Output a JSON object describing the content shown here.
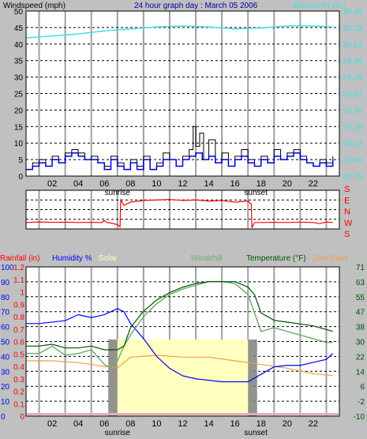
{
  "colors": {
    "background": "#c0c0c0",
    "plot_background": "#ffffff",
    "grid": "#000000",
    "vgrid": "#a0a0a0",
    "windspeed": "#000000",
    "windspeed_avg": "#0000dd",
    "barometer": "#40e0e0",
    "direction": "#ff0000",
    "rainfall": "#ff0000",
    "humidity": "#0000ff",
    "solar": "#ffffc0",
    "windchill": "#70b070",
    "temperature": "#005000",
    "dewpoint": "#f0a040",
    "daylight": "#808080"
  },
  "chart_data": [
    {
      "type": "line",
      "title": "24 hour graph day : March 05 2006",
      "ylabel": "Windspeed (mph)",
      "y2label": "Barometer (in.)",
      "x_ticks": [
        "02",
        "04",
        "06",
        "08",
        "10",
        "12",
        "14",
        "16",
        "18",
        "20",
        "22"
      ],
      "xlim": [
        0,
        24
      ],
      "ylim": [
        0,
        50
      ],
      "y_ticks": [
        "0",
        "5",
        "10",
        "15",
        "20",
        "25",
        "30",
        "35",
        "40",
        "45",
        "50"
      ],
      "y2lim": [
        28.79,
        30.45
      ],
      "y2_ticks": [
        "28.79",
        "28.96",
        "29.12",
        "29.29",
        "29.46",
        "29.62",
        "29.79",
        "29.96",
        "30.12",
        "30.29",
        "30.45"
      ],
      "annotations": [
        "sunrise",
        "sunset"
      ],
      "sunrise_hour": 7.0,
      "sunset_hour": 17.6,
      "grid": true,
      "series": [
        {
          "name": "Windspeed (mph)",
          "color": "#000000",
          "x": [
            0,
            0.5,
            1,
            1.5,
            2,
            2.5,
            3,
            3.5,
            4,
            4.5,
            5,
            5.5,
            6,
            6.5,
            7,
            7.5,
            8,
            8.5,
            9,
            9.5,
            10,
            10.5,
            11,
            11.5,
            12,
            12.5,
            12.8,
            13,
            13.3,
            13.6,
            14,
            14.5,
            15,
            15.5,
            16,
            16.5,
            17,
            17.5,
            18,
            18.5,
            19,
            19.5,
            20,
            20.5,
            21,
            21.5,
            22,
            22.5,
            23,
            23.5
          ],
          "values": [
            2,
            4,
            5,
            3,
            6,
            4,
            7,
            8,
            7,
            5,
            6,
            4,
            3,
            6,
            4,
            2,
            5,
            3,
            6,
            2,
            4,
            7,
            5,
            3,
            6,
            8,
            15,
            9,
            13,
            5,
            11,
            4,
            7,
            3,
            6,
            8,
            5,
            3,
            6,
            4,
            8,
            5,
            7,
            8,
            6,
            4,
            3,
            5,
            4,
            6
          ]
        },
        {
          "name": "Windspeed (avg)",
          "color": "#0000dd",
          "x": [
            0,
            0.5,
            1,
            1.5,
            2,
            2.5,
            3,
            3.5,
            4,
            4.5,
            5,
            5.5,
            6,
            6.5,
            7,
            7.5,
            8,
            8.5,
            9,
            9.5,
            10,
            10.5,
            11,
            11.5,
            12,
            12.5,
            13,
            13.5,
            14,
            14.5,
            15,
            15.5,
            16,
            16.5,
            17,
            17.5,
            18,
            18.5,
            19,
            19.5,
            20,
            20.5,
            21,
            21.5,
            22,
            22.5,
            23,
            23.5
          ],
          "values": [
            2,
            3,
            4,
            3,
            5,
            4,
            6,
            7,
            6,
            5,
            5,
            4,
            2,
            5,
            3,
            2,
            4,
            2,
            5,
            2,
            3,
            5,
            5,
            3,
            5,
            6,
            7,
            5,
            6,
            4,
            5,
            3,
            5,
            6,
            4,
            3,
            5,
            4,
            6,
            5,
            6,
            7,
            5,
            4,
            3,
            4,
            3,
            5
          ]
        },
        {
          "name": "Barometer (in.)",
          "color": "#40e0e0",
          "x": [
            0,
            2,
            4,
            6,
            8,
            10,
            12,
            14,
            16,
            18,
            20,
            22,
            23.5
          ],
          "values": [
            30.18,
            30.2,
            30.22,
            30.25,
            30.27,
            30.29,
            30.3,
            30.29,
            30.27,
            30.28,
            30.3,
            30.3,
            30.29
          ]
        }
      ]
    },
    {
      "type": "line",
      "ylabel": "",
      "y_ticks": [
        "S",
        "E",
        "N",
        "W",
        "S"
      ],
      "ylim": [
        0,
        360
      ],
      "xlim": [
        0,
        24
      ],
      "series": [
        {
          "name": "Wind direction",
          "color": "#ff0000",
          "x": [
            0,
            1,
            2,
            3,
            4,
            5,
            5.8,
            6,
            6.2,
            6.5,
            7,
            7.2,
            7.25,
            7.5,
            8,
            9,
            10,
            11,
            12,
            13,
            14,
            15,
            16,
            17,
            17.25,
            17.3,
            17.5,
            18,
            19,
            20,
            21,
            22,
            22.5,
            23,
            23.5
          ],
          "values": [
            300,
            295,
            298,
            296,
            300,
            298,
            300,
            280,
            300,
            305,
            320,
            340,
            90,
            140,
            110,
            95,
            90,
            85,
            95,
            90,
            100,
            95,
            110,
            100,
            130,
            350,
            300,
            300,
            298,
            300,
            296,
            300,
            310,
            295,
            300
          ]
        }
      ]
    },
    {
      "type": "line",
      "ylabel": "Rainfall (in)",
      "labels": [
        "Rainfall (in)",
        "Humidity %",
        "Solar",
        "Windchill",
        "Temperature (°F)",
        "Dew Point"
      ],
      "y_rain_ticks": [
        "0",
        "0.1",
        "0.2",
        "0.3",
        "0.4",
        "0.5",
        "0.6",
        "0.7",
        "0.8",
        "0.9",
        "1",
        "1.1",
        "1.2"
      ],
      "ylim_rain": [
        0,
        1.2
      ],
      "y_hum_ticks": [
        "0",
        "10",
        "20",
        "30",
        "40",
        "50",
        "60",
        "70",
        "80",
        "90",
        "100"
      ],
      "ylim_humidity": [
        0,
        100
      ],
      "y_temp_ticks": [
        "-10",
        "-2",
        "6",
        "14",
        "22",
        "30",
        "38",
        "47",
        "55",
        "63",
        "71"
      ],
      "ylim_temp": [
        -10,
        71
      ],
      "xlim": [
        0,
        24
      ],
      "annotations": [
        "sunrise",
        "sunset"
      ],
      "series": [
        {
          "name": "Solar",
          "color": "#ffffc0",
          "x": [
            6.4,
            6.5,
            8,
            10,
            12,
            14,
            16,
            17.3,
            17.4
          ],
          "values": [
            0,
            1,
            1,
            1,
            1,
            1,
            1,
            1,
            0
          ]
        },
        {
          "name": "Humidity %",
          "color": "#0000ff",
          "x": [
            0,
            1,
            2,
            3,
            4,
            5,
            6,
            7,
            7.5,
            8,
            9,
            10,
            11,
            12,
            13,
            14,
            15,
            16,
            17,
            18,
            19,
            20,
            21,
            22,
            23,
            23.5
          ],
          "values": [
            62,
            62,
            63,
            64,
            68,
            66,
            68,
            72,
            70,
            62,
            52,
            40,
            32,
            27,
            25,
            24,
            23,
            23,
            23,
            28,
            33,
            34,
            34,
            36,
            38,
            42
          ]
        },
        {
          "name": "Windchill",
          "color": "#70b070",
          "x": [
            0,
            1,
            2,
            3,
            4,
            5,
            6,
            6.5,
            7,
            7.5,
            8,
            9,
            10,
            11,
            12,
            13,
            14,
            15,
            16,
            17,
            17.5,
            18,
            19,
            20,
            21,
            22,
            23,
            23.5
          ],
          "values": [
            24,
            24,
            28,
            23,
            24,
            26,
            18,
            16,
            20,
            28,
            34,
            44,
            51,
            56,
            59,
            61,
            63,
            63,
            62,
            56,
            46,
            36,
            38,
            36,
            34,
            32,
            30,
            30
          ]
        },
        {
          "name": "Temperature (°F)",
          "color": "#005000",
          "x": [
            0,
            1,
            2,
            3,
            4,
            5,
            6,
            7,
            7.5,
            8,
            9,
            10,
            11,
            12,
            13,
            14,
            15,
            16,
            17,
            17.5,
            18,
            19,
            20,
            21,
            22,
            23,
            23.5
          ],
          "values": [
            28,
            28,
            29,
            27,
            27,
            28,
            26,
            26,
            28,
            38,
            47,
            53,
            57,
            60,
            62,
            63,
            63,
            63,
            60,
            56,
            46,
            42,
            41,
            40,
            39,
            37,
            36
          ]
        },
        {
          "name": "Dew Point",
          "color": "#f0a040",
          "x": [
            0,
            2,
            4,
            6,
            7,
            8,
            10,
            12,
            14,
            16,
            17,
            18,
            20,
            22,
            23.5
          ],
          "values": [
            20,
            20,
            19,
            17,
            16,
            22,
            23,
            22,
            22,
            20,
            19,
            18,
            16,
            13,
            12
          ]
        }
      ]
    }
  ]
}
